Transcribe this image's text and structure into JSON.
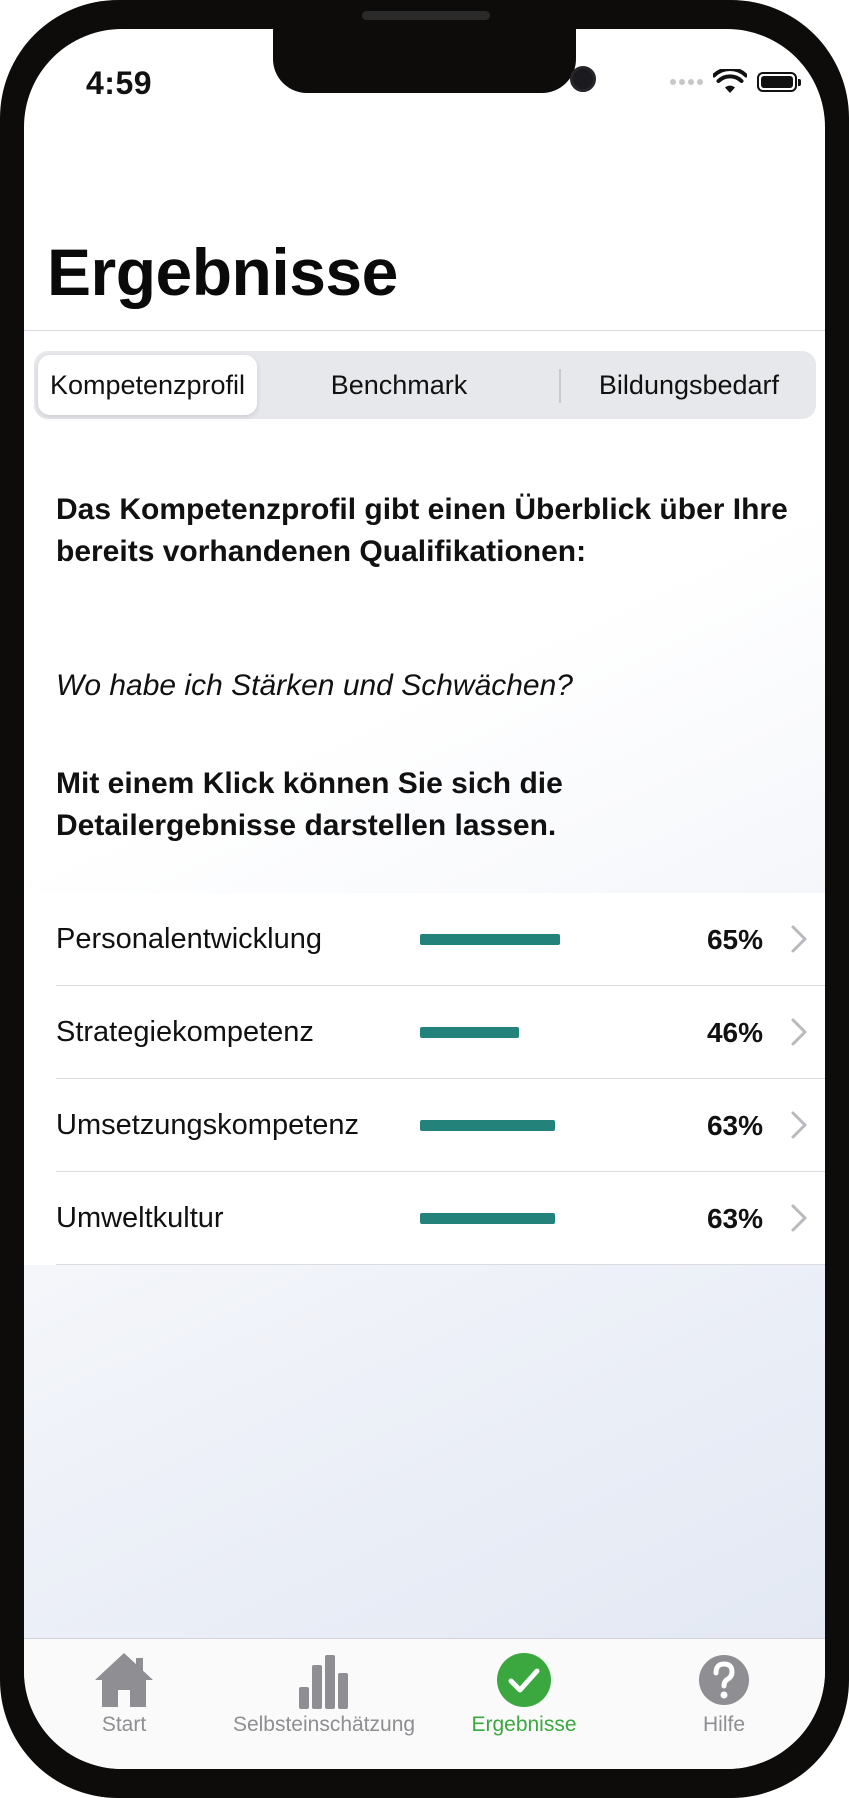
{
  "status_bar": {
    "time": "4:59"
  },
  "page": {
    "title": "Ergebnisse"
  },
  "segments": [
    {
      "label": "Kompetenzprofil",
      "selected": true
    },
    {
      "label": "Benchmark",
      "selected": false
    },
    {
      "label": "Bildungsbedarf",
      "selected": false
    }
  ],
  "intro": {
    "heading": "Das Kompetenzprofil gibt einen Überblick über Ihre bereits vorhandenen Qualifikationen:",
    "question": "Wo habe ich Stärken und Schwächen?",
    "hint": "Mit einem Klick können Sie sich die Detailergebnisse darstellen lassen."
  },
  "results": [
    {
      "label": "Personalentwicklung",
      "percent": "65%",
      "value": 65
    },
    {
      "label": "Strategiekompetenz",
      "percent": "46%",
      "value": 46
    },
    {
      "label": "Umsetzungskompetenz",
      "percent": "63%",
      "value": 63
    },
    {
      "label": "Umweltkultur",
      "percent": "63%",
      "value": 63
    }
  ],
  "tabbar": [
    {
      "label": "Start",
      "icon": "house-icon",
      "active": false
    },
    {
      "label": "Selbsteinschätzung",
      "icon": "bar-chart-icon",
      "active": false
    },
    {
      "label": "Ergebnisse",
      "icon": "checkmark-circle-icon",
      "active": true
    },
    {
      "label": "Hilfe",
      "icon": "question-circle-icon",
      "active": false
    }
  ],
  "colors": {
    "accent_green": "#3aa83f",
    "bar_teal": "#23827a",
    "inactive_gray": "#8e8e93"
  }
}
